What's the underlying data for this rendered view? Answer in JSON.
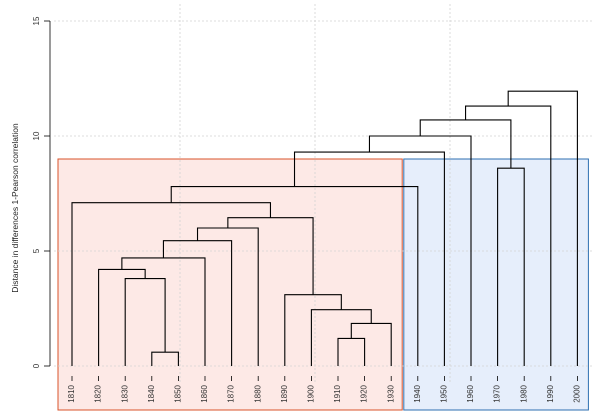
{
  "chart_data": {
    "type": "dendrogram",
    "ylabel": "Distance in differences 1-Pearson correlation",
    "ylim": [
      -0.5,
      15
    ],
    "yticks": [
      0,
      5,
      10,
      15
    ],
    "ytick_labels": [
      "0",
      "5",
      "10",
      "15"
    ],
    "leaves": [
      "1810",
      "1820",
      "1830",
      "1840",
      "1850",
      "1860",
      "1870",
      "1880",
      "1890",
      "1900",
      "1910",
      "1920",
      "1930",
      "1940",
      "1950",
      "1960",
      "1970",
      "1980",
      "1990",
      "2000"
    ],
    "merges": [
      {
        "left": "1840",
        "right": "1850",
        "height": 0.6
      },
      {
        "left": "1830",
        "right": "m1",
        "height": 3.8
      },
      {
        "left": "1820",
        "right": "m2",
        "height": 4.2
      },
      {
        "left": "m3",
        "right": "1860",
        "height": 4.7
      },
      {
        "left": "m4",
        "right": "1870",
        "height": 5.45
      },
      {
        "left": "m5",
        "right": "1880",
        "height": 6.0
      },
      {
        "left": "1910",
        "right": "1920",
        "height": 1.2
      },
      {
        "left": "m7",
        "right": "1930",
        "height": 1.85
      },
      {
        "left": "1900",
        "right": "m8",
        "height": 2.45
      },
      {
        "left": "1890",
        "right": "m9",
        "height": 3.1
      },
      {
        "left": "m6",
        "right": "m10",
        "height": 6.45
      },
      {
        "left": "1810",
        "right": "m11",
        "height": 7.1
      },
      {
        "left": "m12",
        "right": "1940",
        "height": 7.8
      },
      {
        "left": "1970",
        "right": "1980",
        "height": 8.6
      },
      {
        "left": "m13",
        "right": "1950",
        "height": 9.3
      },
      {
        "left": "m15",
        "right": "1960",
        "height": 10.0
      },
      {
        "left": "m16",
        "right": "m14",
        "height": 10.7
      },
      {
        "left": "m17",
        "right": "1990",
        "height": 11.3
      },
      {
        "left": "m18",
        "right": "2000",
        "height": 11.95
      }
    ],
    "clusters": [
      {
        "leaves_from": "1810",
        "leaves_to": "1930",
        "color": "#d9532b",
        "fill": "#fde9e6"
      },
      {
        "leaves_from": "1940",
        "leaves_to": "2000",
        "color": "#2e6fb0",
        "fill": "#e6eefb"
      }
    ],
    "grid": true,
    "colors": {
      "grid": "#d3d3d3",
      "branch": "#000000"
    }
  }
}
